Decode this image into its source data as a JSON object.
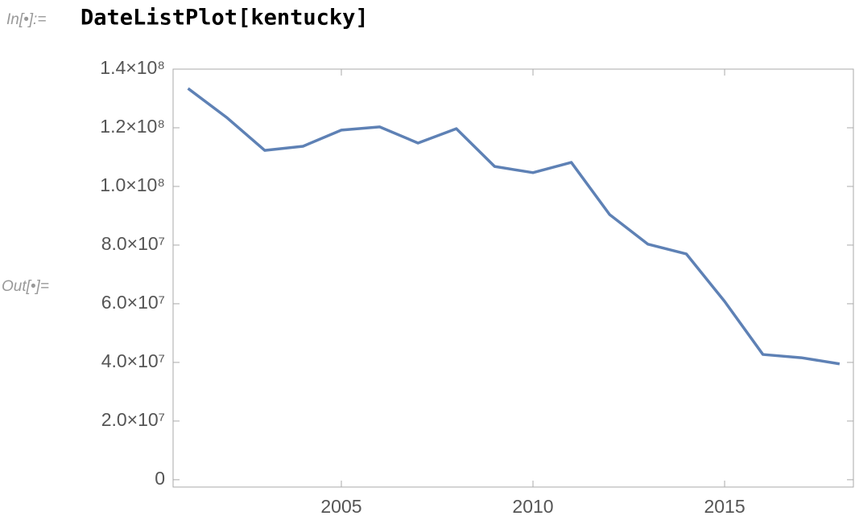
{
  "input": {
    "label": "In[•]:=",
    "code": "DateListPlot[kentucky]"
  },
  "output_label": "Out[•]=",
  "chart_data": {
    "type": "line",
    "x": [
      2001,
      2002,
      2003,
      2004,
      2005,
      2006,
      2007,
      2008,
      2009,
      2010,
      2011,
      2012,
      2013,
      2014,
      2015,
      2016,
      2017,
      2018
    ],
    "values": [
      133400000,
      123600000,
      112300000,
      113700000,
      119200000,
      120300000,
      114800000,
      119700000,
      106800000,
      104700000,
      108200000,
      90400000,
      80300000,
      77000000,
      60800000,
      42700000,
      41600000,
      39500000
    ],
    "color": "#5e81b5",
    "xlim": [
      2000.61,
      2018.36
    ],
    "ylim": [
      -2500000,
      140000000
    ],
    "xticks": [
      2005,
      2010,
      2015
    ],
    "yticks": [
      0,
      {
        "value": 20000000,
        "label": "2.0×10⁷"
      },
      {
        "value": 40000000,
        "label": "4.0×10⁷"
      },
      {
        "value": 60000000,
        "label": "6.0×10⁷"
      },
      {
        "value": 80000000,
        "label": "8.0×10⁷"
      },
      {
        "value": 100000000,
        "label": "1.0×10⁸"
      },
      {
        "value": 120000000,
        "label": "1.2×10⁸"
      },
      {
        "value": 140000000,
        "label": "1.4×10⁸"
      }
    ]
  }
}
